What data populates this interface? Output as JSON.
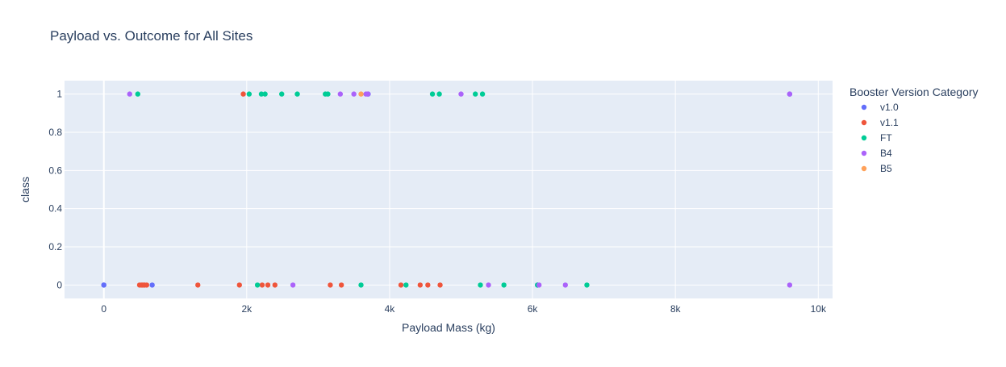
{
  "chart_data": {
    "type": "scatter",
    "title": "Payload vs. Outcome for All Sites",
    "xlabel": "Payload Mass (kg)",
    "ylabel": "class",
    "xlim": [
      -550,
      10200
    ],
    "ylim": [
      -0.07,
      1.07
    ],
    "x_ticks": [
      0,
      2000,
      4000,
      6000,
      8000,
      10000
    ],
    "x_tick_labels": [
      "0",
      "2k",
      "4k",
      "6k",
      "8k",
      "10k"
    ],
    "y_ticks": [
      0,
      0.2,
      0.4,
      0.6,
      0.8,
      1
    ],
    "y_tick_labels": [
      "0",
      "0.2",
      "0.4",
      "0.6",
      "0.8",
      "1"
    ],
    "grid": true,
    "plot_background": "#e5ecf6",
    "legend": {
      "title": "Booster Version Category",
      "placement": "right"
    },
    "series": [
      {
        "name": "v1.0",
        "color": "#636efa",
        "points": [
          [
            0,
            0
          ],
          [
            0,
            0
          ],
          [
            677,
            0
          ],
          [
            9600,
            1
          ],
          [
            6070,
            0
          ],
          [
            3700,
            1
          ]
        ]
      },
      {
        "name": "v1.1",
        "color": "#ef553b",
        "points": [
          [
            500,
            0
          ],
          [
            525,
            0
          ],
          [
            540,
            0
          ],
          [
            560,
            0
          ],
          [
            570,
            0
          ],
          [
            600,
            0
          ],
          [
            1316,
            0
          ],
          [
            1898,
            0
          ],
          [
            1952,
            1
          ],
          [
            2216,
            0
          ],
          [
            2296,
            0
          ],
          [
            2395,
            0
          ],
          [
            3170,
            0
          ],
          [
            3325,
            0
          ],
          [
            4159,
            0
          ],
          [
            4428,
            0
          ],
          [
            4535,
            0
          ],
          [
            4707,
            0
          ]
        ]
      },
      {
        "name": "FT",
        "color": "#00cc96",
        "points": [
          [
            475,
            1
          ],
          [
            2034,
            1
          ],
          [
            2150,
            0
          ],
          [
            2205,
            1
          ],
          [
            2257,
            1
          ],
          [
            2490,
            1
          ],
          [
            2708,
            1
          ],
          [
            3100,
            1
          ],
          [
            3136,
            1
          ],
          [
            3600,
            0
          ],
          [
            4230,
            0
          ],
          [
            4600,
            1
          ],
          [
            4696,
            1
          ],
          [
            5200,
            1
          ],
          [
            5271,
            0
          ],
          [
            5300,
            1
          ],
          [
            5600,
            0
          ],
          [
            6070,
            0
          ],
          [
            6761,
            0
          ]
        ]
      },
      {
        "name": "B4",
        "color": "#ab63fa",
        "points": [
          [
            362,
            1
          ],
          [
            2647,
            0
          ],
          [
            3310,
            1
          ],
          [
            3500,
            1
          ],
          [
            3669,
            1
          ],
          [
            3696,
            1
          ],
          [
            5000,
            1
          ],
          [
            5384,
            0
          ],
          [
            6092,
            0
          ],
          [
            6460,
            0
          ],
          [
            9600,
            1
          ],
          [
            9600,
            0
          ]
        ]
      },
      {
        "name": "B5",
        "color": "#ffa15a",
        "points": [
          [
            3600,
            1
          ]
        ]
      }
    ]
  }
}
